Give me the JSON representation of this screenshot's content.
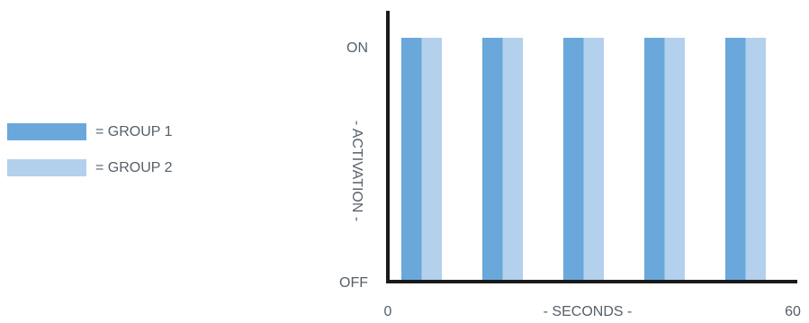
{
  "chart_data": {
    "type": "bar",
    "xlabel": "- SECONDS -",
    "ylabel": "- ACTIVATION -",
    "xlim": [
      0,
      60
    ],
    "x_tick_labels": [
      "0",
      "60"
    ],
    "y_tick_labels": [
      "OFF",
      "ON"
    ],
    "series": [
      {
        "name": "= GROUP 1",
        "color": "#6aa8db",
        "intervals": [
          [
            2,
            5
          ],
          [
            14,
            17
          ],
          [
            26,
            29
          ],
          [
            38,
            41
          ],
          [
            50,
            53
          ]
        ],
        "value": 1
      },
      {
        "name": "= GROUP 2",
        "color": "#b3d0ec",
        "intervals": [
          [
            5,
            8
          ],
          [
            17,
            20
          ],
          [
            29,
            32
          ],
          [
            41,
            44
          ],
          [
            53,
            56
          ]
        ],
        "value": 1
      }
    ],
    "legend_position": "left",
    "grid": false
  }
}
